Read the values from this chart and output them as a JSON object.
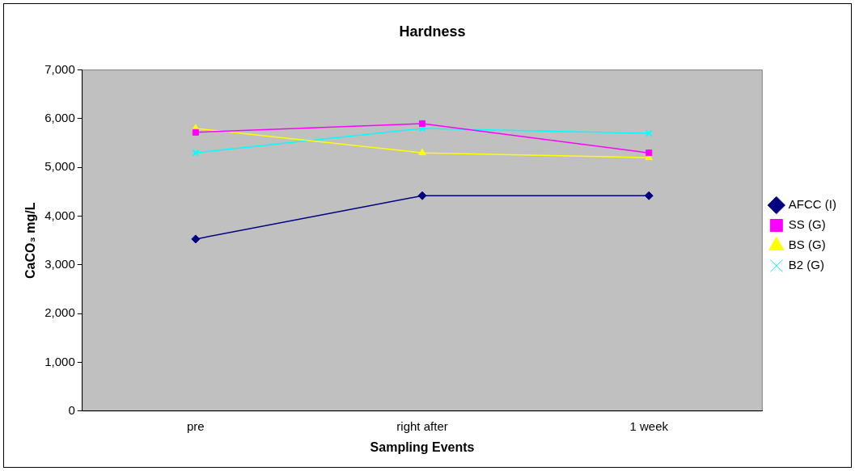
{
  "chart_data": {
    "type": "line",
    "title": "Hardness",
    "xlabel": "Sampling Events",
    "ylabel": "CaCO₃ mg/L",
    "categories": [
      "pre",
      "right after",
      "1 week"
    ],
    "series": [
      {
        "name": "AFCC (I)",
        "color": "#000080",
        "marker": "diamond",
        "values": [
          3530,
          4420,
          4420
        ]
      },
      {
        "name": "SS (G)",
        "color": "#ff00ff",
        "marker": "square",
        "values": [
          5720,
          5900,
          5300
        ]
      },
      {
        "name": "BS (G)",
        "color": "#ffff00",
        "marker": "triangle",
        "values": [
          5800,
          5300,
          5200
        ]
      },
      {
        "name": "B2 (G)",
        "color": "#00ffff",
        "marker": "cross",
        "values": [
          5300,
          5800,
          5700
        ]
      }
    ],
    "ylim": [
      0,
      7000
    ],
    "yticks": [
      0,
      {
        "value": 1000,
        "label": "1,000"
      },
      {
        "value": 2000,
        "label": "2,000"
      },
      {
        "value": 3000,
        "label": "3,000"
      },
      {
        "value": 4000,
        "label": "4,000"
      },
      {
        "value": 5000,
        "label": "5,000"
      },
      {
        "value": 6000,
        "label": "6,000"
      },
      {
        "value": 7000,
        "label": "7,000"
      }
    ],
    "grid": false,
    "legend": "right"
  }
}
